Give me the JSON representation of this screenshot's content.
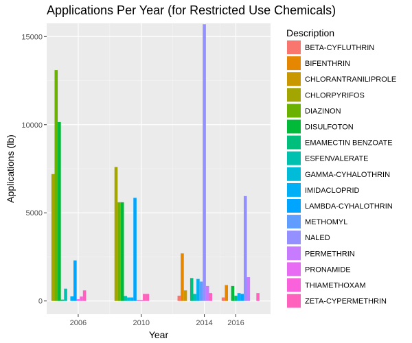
{
  "chart_data": {
    "type": "bar",
    "title": "Applications Per Year (for Restricted Use Chemicals)",
    "xlabel": "Year",
    "ylabel": "Applications (lb)",
    "xlim": [
      2004,
      2018.2
    ],
    "ylim": [
      -750,
      15750
    ],
    "x_ticks": [
      2006,
      2010,
      2014,
      2016
    ],
    "x_tick_labels": [
      "2006",
      "2010",
      "2014",
      "2016"
    ],
    "y_ticks": [
      0,
      5000,
      10000,
      15000
    ],
    "y_tick_labels": [
      "0",
      "5000",
      "10000",
      "15000"
    ],
    "grid": true,
    "legend": {
      "title": "Description",
      "placement": "right",
      "entries": [
        {
          "name": "BETA-CYFLUTHRIN",
          "color": "#F8766D"
        },
        {
          "name": "BIFENTHRIN",
          "color": "#E58700"
        },
        {
          "name": "CHLORANTRANILIPROLE",
          "color": "#C99800"
        },
        {
          "name": "CHLORPYRIFOS",
          "color": "#A3A500"
        },
        {
          "name": "DIAZINON",
          "color": "#6BB100"
        },
        {
          "name": "DISULFOTON",
          "color": "#00BA38"
        },
        {
          "name": "EMAMECTIN BENZOATE",
          "color": "#00BF7D"
        },
        {
          "name": "ESFENVALERATE",
          "color": "#00C0AF"
        },
        {
          "name": "GAMMA-CYHALOTHRIN",
          "color": "#00BCD8"
        },
        {
          "name": "IMIDACLOPRID",
          "color": "#00B0F6"
        },
        {
          "name": "LAMBDA-CYHALOTHRIN",
          "color": "#00A5FF"
        },
        {
          "name": "METHOMYL",
          "color": "#619CFF"
        },
        {
          "name": "NALED",
          "color": "#9590FF"
        },
        {
          "name": "PERMETHRIN",
          "color": "#C77CFF"
        },
        {
          "name": "PRONAMIDE",
          "color": "#E76BF3"
        },
        {
          "name": "THIAMETHOXAM",
          "color": "#FA62DB"
        },
        {
          "name": "ZETA-CYPERMETHRIN",
          "color": "#FF62BC"
        }
      ]
    },
    "bar_width_years": 0.2,
    "bars": [
      {
        "x": 2004.4,
        "y": 7200,
        "color": "#A3A500"
      },
      {
        "x": 2004.6,
        "y": 13100,
        "color": "#6BB100"
      },
      {
        "x": 2004.8,
        "y": 10150,
        "color": "#00BA38"
      },
      {
        "x": 2005.0,
        "y": 80,
        "color": "#00BF7D"
      },
      {
        "x": 2005.2,
        "y": 700,
        "color": "#00C0AF"
      },
      {
        "x": 2005.6,
        "y": 260,
        "color": "#00B0F6"
      },
      {
        "x": 2005.8,
        "y": 2300,
        "color": "#00A5FF"
      },
      {
        "x": 2006.0,
        "y": 100,
        "color": "#E76BF3"
      },
      {
        "x": 2006.2,
        "y": 250,
        "color": "#FA62DB"
      },
      {
        "x": 2006.4,
        "y": 600,
        "color": "#FF62BC"
      },
      {
        "x": 2008.4,
        "y": 7600,
        "color": "#A3A500"
      },
      {
        "x": 2008.6,
        "y": 5600,
        "color": "#6BB100"
      },
      {
        "x": 2008.8,
        "y": 5600,
        "color": "#00BA38"
      },
      {
        "x": 2009.0,
        "y": 280,
        "color": "#00C0AF"
      },
      {
        "x": 2009.2,
        "y": 200,
        "color": "#00BCD8"
      },
      {
        "x": 2009.4,
        "y": 200,
        "color": "#00B0F6"
      },
      {
        "x": 2009.6,
        "y": 5850,
        "color": "#00A5FF"
      },
      {
        "x": 2009.8,
        "y": 60,
        "color": "#E76BF3"
      },
      {
        "x": 2010.0,
        "y": 60,
        "color": "#FA62DB"
      },
      {
        "x": 2010.2,
        "y": 400,
        "color": "#FF62BC"
      },
      {
        "x": 2010.4,
        "y": 400,
        "color": "#FF62BC"
      },
      {
        "x": 2012.4,
        "y": 300,
        "color": "#F8766D"
      },
      {
        "x": 2012.6,
        "y": 2700,
        "color": "#E58700"
      },
      {
        "x": 2012.8,
        "y": 600,
        "color": "#C99800"
      },
      {
        "x": 2013.2,
        "y": 1300,
        "color": "#00BF7D"
      },
      {
        "x": 2013.4,
        "y": 400,
        "color": "#00C0AF"
      },
      {
        "x": 2013.6,
        "y": 1250,
        "color": "#00B0F6"
      },
      {
        "x": 2013.8,
        "y": 1100,
        "color": "#619CFF"
      },
      {
        "x": 2014.0,
        "y": 15700,
        "color": "#9590FF"
      },
      {
        "x": 2014.2,
        "y": 850,
        "color": "#C77CFF"
      },
      {
        "x": 2014.4,
        "y": 450,
        "color": "#FF62BC"
      },
      {
        "x": 2015.2,
        "y": 200,
        "color": "#F8766D"
      },
      {
        "x": 2015.4,
        "y": 900,
        "color": "#E58700"
      },
      {
        "x": 2015.8,
        "y": 850,
        "color": "#00BA38"
      },
      {
        "x": 2016.0,
        "y": 300,
        "color": "#00BF7D"
      },
      {
        "x": 2016.2,
        "y": 450,
        "color": "#00B0F6"
      },
      {
        "x": 2016.4,
        "y": 400,
        "color": "#00A5FF"
      },
      {
        "x": 2016.6,
        "y": 5950,
        "color": "#9590FF"
      },
      {
        "x": 2016.8,
        "y": 1350,
        "color": "#C77CFF"
      },
      {
        "x": 2017.4,
        "y": 450,
        "color": "#FF62BC"
      }
    ]
  }
}
